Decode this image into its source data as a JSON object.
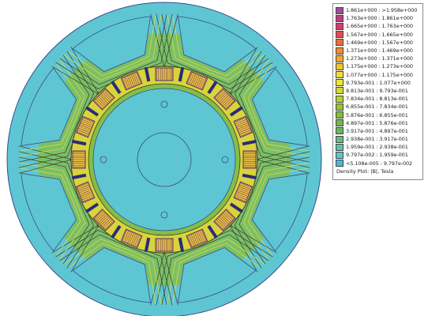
{
  "legend": {
    "entries": [
      {
        "label": "1.861e+000 : >1.958e+000",
        "color": "#a04a9a"
      },
      {
        "label": "1.763e+000 : 1.861e+000",
        "color": "#c23a86"
      },
      {
        "label": "1.665e+000 : 1.763e+000",
        "color": "#d9386f"
      },
      {
        "label": "1.567e+000 : 1.665e+000",
        "color": "#e74a52"
      },
      {
        "label": "1.469e+000 : 1.567e+000",
        "color": "#ee6a3c"
      },
      {
        "label": "1.371e+000 : 1.469e+000",
        "color": "#f18a30"
      },
      {
        "label": "1.273e+000 : 1.371e+000",
        "color": "#f4a82c"
      },
      {
        "label": "1.175e+000 : 1.273e+000",
        "color": "#f6c52a"
      },
      {
        "label": "1.077e+000 : 1.175e+000",
        "color": "#f5dc2c"
      },
      {
        "label": "9.793e-001 : 1.077e+000",
        "color": "#eee630"
      },
      {
        "label": "8.813e-001 : 9.793e-001",
        "color": "#d4dc28"
      },
      {
        "label": "7.834e-001 : 8.813e-001",
        "color": "#b8d02a"
      },
      {
        "label": "6.855e-001 : 7.834e-001",
        "color": "#9cc42e"
      },
      {
        "label": "5.876e-001 : 6.855e-001",
        "color": "#86bc3c"
      },
      {
        "label": "4.897e-001 : 5.876e-001",
        "color": "#74b64e"
      },
      {
        "label": "3.917e-001 : 4.897e-001",
        "color": "#6ab660"
      },
      {
        "label": "2.938e-001 : 3.917e-001",
        "color": "#66ba80"
      },
      {
        "label": "1.959e-001 : 2.938e-001",
        "color": "#62c0a6"
      },
      {
        "label": "9.797e-002 : 1.959e-001",
        "color": "#5ec6c6"
      },
      {
        "label": "<5.108e-005 : 9.797e-002",
        "color": "#4fb6d6"
      }
    ],
    "caption": "Density Plot: |B|, Tesla"
  },
  "colors": {
    "background_field": "#5ec6d3",
    "stator_field": "#84be48",
    "rotor_tooth": "#d9d43a",
    "flux_line": "#3a3a22",
    "outline": "#3a4a8a",
    "winding": "#5a2a7a"
  }
}
